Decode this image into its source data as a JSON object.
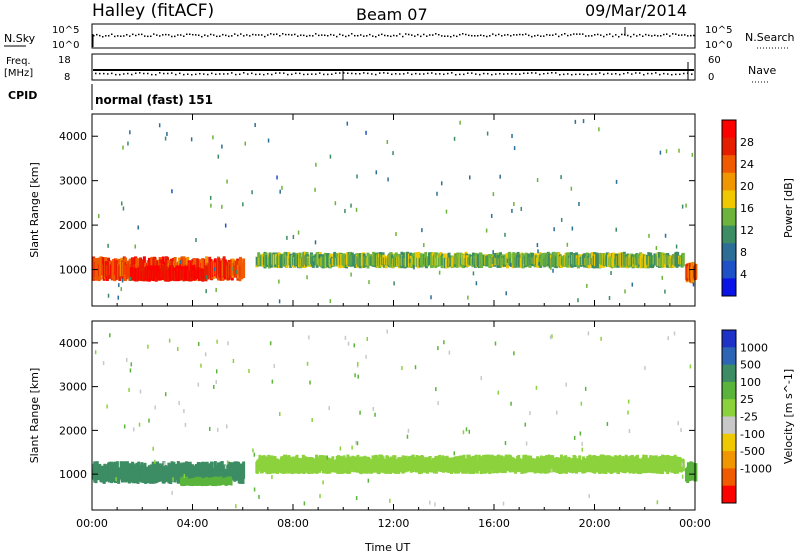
{
  "header": {
    "station": "Halley (fitACF)",
    "beam": "Beam 07",
    "date": "09/Mar/2014"
  },
  "status_panels": {
    "nsky_label": "N.Sky",
    "nsearch_label": "N.Search",
    "nsky_ticks": [
      "10^5",
      "10^0"
    ],
    "nsearch_ticks": [
      "10^5",
      "10^0"
    ],
    "freq_label_line1": "Freq.",
    "freq_label_line2": "[MHz]",
    "freq_ticks": [
      "18",
      "8"
    ],
    "nave_label": "Nave",
    "nave_ticks": [
      "60",
      "0"
    ],
    "cpid_label": "CPID",
    "cpid_text": "normal (fast) 151"
  },
  "chart_data": [
    {
      "type": "heatmap",
      "ylabel": "Slant Range [km]",
      "xlabel": "Time UT",
      "x_ticks": [
        "00:00",
        "04:00",
        "08:00",
        "12:00",
        "16:00",
        "20:00",
        "00:00"
      ],
      "xlim_hours": [
        0,
        24
      ],
      "y_ticks": [
        1000,
        2000,
        3000,
        4000
      ],
      "ylim": [
        180,
        4500
      ],
      "colorbar": {
        "label": "Power [dB]",
        "ticks": [
          "4",
          "8",
          "12",
          "16",
          "20",
          "24",
          "28"
        ],
        "range": [
          0,
          32
        ],
        "colors": [
          "#0a14e6",
          "#1e50c8",
          "#2d6e96",
          "#3c8c64",
          "#6eb43c",
          "#f0c800",
          "#f09600",
          "#f05a00",
          "#e61e00",
          "#ff0000"
        ]
      },
      "bands": [
        {
          "t0": 0.0,
          "t1": 6.0,
          "range_low": 550,
          "range_high": 1300,
          "power": 26
        },
        {
          "t0": 1.5,
          "t1": 4.5,
          "range_low": 600,
          "range_high": 1100,
          "power": 30
        },
        {
          "t0": 6.5,
          "t1": 23.5,
          "range_low": 900,
          "range_high": 1400,
          "power": 14
        },
        {
          "t0": 23.6,
          "t1": 24.0,
          "range_low": 500,
          "range_high": 1200,
          "power": 24
        }
      ]
    },
    {
      "type": "heatmap",
      "ylabel": "Slant Range [km]",
      "xlabel": "Time UT",
      "x_ticks": [
        "00:00",
        "04:00",
        "08:00",
        "12:00",
        "16:00",
        "20:00",
        "00:00"
      ],
      "xlim_hours": [
        0,
        24
      ],
      "y_ticks": [
        1000,
        2000,
        3000,
        4000
      ],
      "ylim": [
        180,
        4500
      ],
      "colorbar": {
        "label": "Velocity [m s^-1]",
        "ticks": [
          "1000",
          "500",
          "100",
          "25",
          "-25",
          "-100",
          "-500",
          "-1000"
        ],
        "colors": [
          "#1e32c8",
          "#2d64b4",
          "#3c8c64",
          "#5ab43c",
          "#8cd23c",
          "#c8c8c8",
          "#f0c800",
          "#f09600",
          "#f05a00",
          "#ff0000"
        ]
      },
      "bands": [
        {
          "t0": 0.0,
          "t1": 6.0,
          "range_low": 600,
          "range_high": 1300,
          "velocity": 120
        },
        {
          "t0": 3.5,
          "t1": 5.5,
          "range_low": 650,
          "range_high": 950,
          "velocity": 60
        },
        {
          "t0": 6.5,
          "t1": 23.5,
          "range_low": 850,
          "range_high": 1450,
          "velocity": 0
        },
        {
          "t0": 23.6,
          "t1": 24.0,
          "range_low": 600,
          "range_high": 1300,
          "velocity": 80
        }
      ]
    }
  ],
  "axis_label_time": "Time UT"
}
